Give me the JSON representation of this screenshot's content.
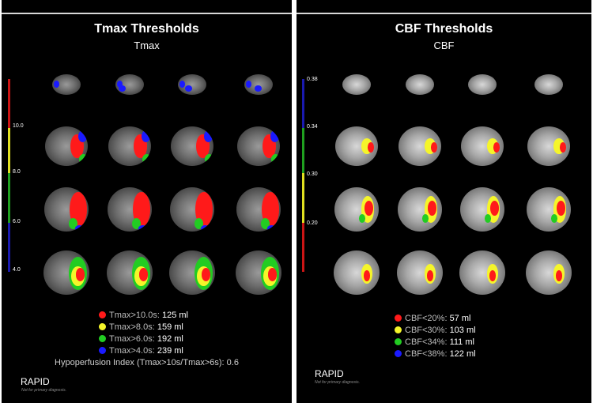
{
  "tmax": {
    "title": "Tmax Thresholds",
    "subtitle": "Tmax",
    "scale_ticks": [
      "10.0",
      "8.0",
      "6.0",
      "4.0"
    ],
    "legend": [
      {
        "label": "Tmax>10.0s:",
        "value": "125 ml",
        "color": "#ff1a1a"
      },
      {
        "label": "Tmax>8.0s:",
        "value": "159 ml",
        "color": "#f5f52a"
      },
      {
        "label": "Tmax>6.0s:",
        "value": "192 ml",
        "color": "#22cc22"
      },
      {
        "label": "Tmax>4.0s:",
        "value": "239 ml",
        "color": "#1a1aff"
      }
    ],
    "hypoperfusion": "Hypoperfusion Index (Tmax>10s/Tmax>6s): 0.6",
    "brand": "RAPID",
    "disclaimer": "Not for primary diagnosis."
  },
  "cbf": {
    "title": "CBF Thresholds",
    "subtitle": "CBF",
    "scale_ticks": [
      "0.38",
      "0.34",
      "0.30",
      "0.20"
    ],
    "legend": [
      {
        "label": "CBF<20%:",
        "value": "57 ml",
        "color": "#ff1a1a"
      },
      {
        "label": "CBF<30%:",
        "value": "103 ml",
        "color": "#f5f52a"
      },
      {
        "label": "CBF<34%:",
        "value": "111 ml",
        "color": "#22cc22"
      },
      {
        "label": "CBF<38%:",
        "value": "122 ml",
        "color": "#1a1aff"
      }
    ],
    "brand": "RAPID",
    "disclaimer": "Not for primary diagnosis."
  }
}
